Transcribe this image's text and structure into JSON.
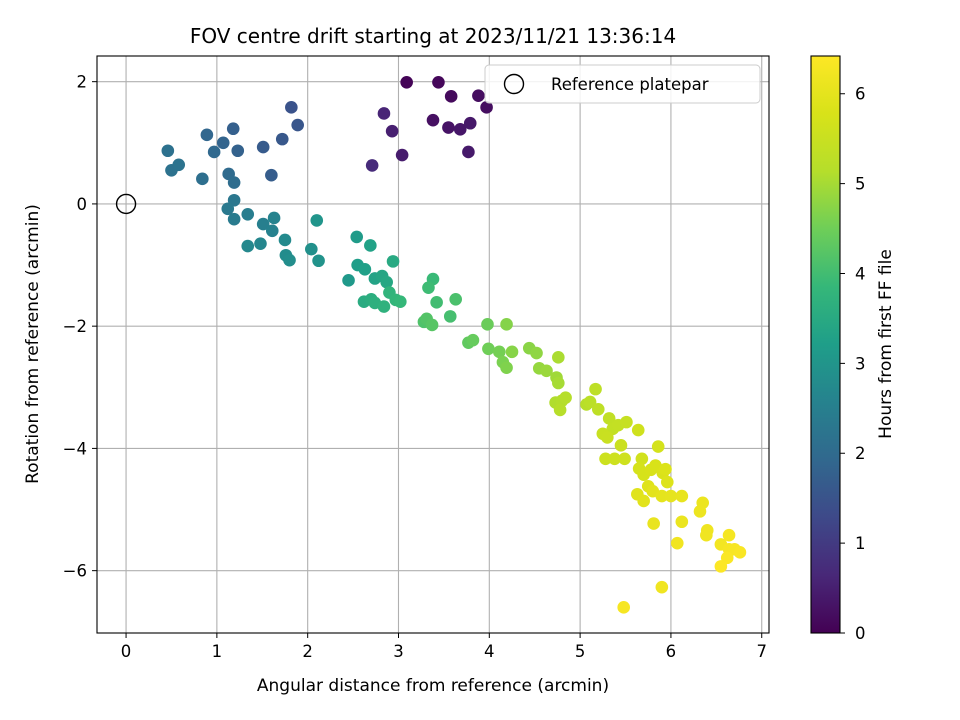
{
  "chart_data": {
    "type": "scatter",
    "title": "FOV centre drift starting at 2023/11/21 13:36:14",
    "xlabel": "Angular distance from reference (arcmin)",
    "ylabel": "Rotation from reference (arcmin)",
    "xlim": [
      -0.32,
      7.08
    ],
    "ylim": [
      -7.02,
      2.42
    ],
    "x_ticks": [
      0,
      1,
      2,
      3,
      4,
      5,
      6,
      7
    ],
    "y_ticks": [
      2,
      0,
      -2,
      -4,
      -6
    ],
    "x_tick_labels": [
      "0",
      "1",
      "2",
      "3",
      "4",
      "5",
      "6",
      "7"
    ],
    "y_tick_labels": [
      "2",
      "0",
      "−2",
      "−4",
      "−6"
    ],
    "grid": true,
    "colormap": "viridis",
    "colorbar": {
      "label": "Hours from first FF file",
      "range": [
        0,
        6.42
      ],
      "ticks": [
        0,
        1,
        2,
        3,
        4,
        5,
        6
      ],
      "tick_labels": [
        "0",
        "1",
        "2",
        "3",
        "4",
        "5",
        "6"
      ]
    },
    "legend": {
      "position": "top-right",
      "entries": [
        "Reference platepar"
      ]
    },
    "reference_point": {
      "x": 0,
      "y": 0
    },
    "points": [
      {
        "x": 3.09,
        "y": 1.99,
        "c": 0.05
      },
      {
        "x": 3.44,
        "y": 1.99,
        "c": 0.1
      },
      {
        "x": 3.58,
        "y": 1.76,
        "c": 0.15
      },
      {
        "x": 3.88,
        "y": 1.77,
        "c": 0.2
      },
      {
        "x": 3.97,
        "y": 1.58,
        "c": 0.22
      },
      {
        "x": 3.38,
        "y": 1.37,
        "c": 0.25
      },
      {
        "x": 3.55,
        "y": 1.25,
        "c": 0.3
      },
      {
        "x": 3.68,
        "y": 1.22,
        "c": 0.35
      },
      {
        "x": 3.79,
        "y": 1.32,
        "c": 0.38
      },
      {
        "x": 3.77,
        "y": 0.85,
        "c": 0.4
      },
      {
        "x": 3.04,
        "y": 0.8,
        "c": 0.45
      },
      {
        "x": 2.93,
        "y": 1.19,
        "c": 0.5
      },
      {
        "x": 2.84,
        "y": 1.48,
        "c": 0.6
      },
      {
        "x": 2.71,
        "y": 0.63,
        "c": 0.7
      },
      {
        "x": 1.82,
        "y": 1.58,
        "c": 1.5
      },
      {
        "x": 1.89,
        "y": 1.29,
        "c": 1.55
      },
      {
        "x": 1.72,
        "y": 1.06,
        "c": 1.6
      },
      {
        "x": 1.51,
        "y": 0.93,
        "c": 1.65
      },
      {
        "x": 1.6,
        "y": 0.47,
        "c": 1.7
      },
      {
        "x": 1.18,
        "y": 1.23,
        "c": 1.75
      },
      {
        "x": 1.23,
        "y": 0.87,
        "c": 1.8
      },
      {
        "x": 1.07,
        "y": 1.0,
        "c": 1.85
      },
      {
        "x": 0.89,
        "y": 1.13,
        "c": 1.9
      },
      {
        "x": 0.97,
        "y": 0.85,
        "c": 1.95
      },
      {
        "x": 1.13,
        "y": 0.49,
        "c": 2.0
      },
      {
        "x": 1.19,
        "y": 0.35,
        "c": 2.05
      },
      {
        "x": 0.84,
        "y": 0.41,
        "c": 2.1
      },
      {
        "x": 0.46,
        "y": 0.87,
        "c": 2.15
      },
      {
        "x": 0.5,
        "y": 0.55,
        "c": 2.18
      },
      {
        "x": 0.58,
        "y": 0.64,
        "c": 2.2
      },
      {
        "x": 1.19,
        "y": 0.06,
        "c": 2.3
      },
      {
        "x": 1.12,
        "y": -0.08,
        "c": 2.35
      },
      {
        "x": 1.19,
        "y": -0.25,
        "c": 2.4
      },
      {
        "x": 1.34,
        "y": -0.17,
        "c": 2.45
      },
      {
        "x": 1.51,
        "y": -0.33,
        "c": 2.5
      },
      {
        "x": 1.61,
        "y": -0.44,
        "c": 2.55
      },
      {
        "x": 1.63,
        "y": -0.23,
        "c": 2.6
      },
      {
        "x": 1.48,
        "y": -0.65,
        "c": 2.65
      },
      {
        "x": 1.34,
        "y": -0.69,
        "c": 2.7
      },
      {
        "x": 1.75,
        "y": -0.59,
        "c": 2.75
      },
      {
        "x": 1.76,
        "y": -0.84,
        "c": 2.8
      },
      {
        "x": 1.8,
        "y": -0.92,
        "c": 2.85
      },
      {
        "x": 2.04,
        "y": -0.74,
        "c": 2.9
      },
      {
        "x": 2.12,
        "y": -0.93,
        "c": 2.95
      },
      {
        "x": 2.1,
        "y": -0.27,
        "c": 3.0
      },
      {
        "x": 2.45,
        "y": -1.25,
        "c": 3.1
      },
      {
        "x": 2.54,
        "y": -0.54,
        "c": 3.15
      },
      {
        "x": 2.55,
        "y": -1.0,
        "c": 3.2
      },
      {
        "x": 2.63,
        "y": -1.07,
        "c": 3.25
      },
      {
        "x": 2.69,
        "y": -0.68,
        "c": 3.3
      },
      {
        "x": 2.74,
        "y": -1.22,
        "c": 3.35
      },
      {
        "x": 2.82,
        "y": -1.18,
        "c": 3.4
      },
      {
        "x": 2.87,
        "y": -1.28,
        "c": 3.45
      },
      {
        "x": 2.94,
        "y": -0.94,
        "c": 3.5
      },
      {
        "x": 2.62,
        "y": -1.6,
        "c": 3.55
      },
      {
        "x": 2.7,
        "y": -1.56,
        "c": 3.6
      },
      {
        "x": 2.74,
        "y": -1.62,
        "c": 3.65
      },
      {
        "x": 2.84,
        "y": -1.68,
        "c": 3.7
      },
      {
        "x": 2.9,
        "y": -1.45,
        "c": 3.75
      },
      {
        "x": 2.97,
        "y": -1.57,
        "c": 3.8
      },
      {
        "x": 3.02,
        "y": -1.6,
        "c": 3.85
      },
      {
        "x": 3.38,
        "y": -1.23,
        "c": 3.9
      },
      {
        "x": 3.33,
        "y": -1.37,
        "c": 3.95
      },
      {
        "x": 3.42,
        "y": -1.61,
        "c": 4.0
      },
      {
        "x": 3.57,
        "y": -1.84,
        "c": 4.05
      },
      {
        "x": 3.63,
        "y": -1.56,
        "c": 4.1
      },
      {
        "x": 3.28,
        "y": -1.93,
        "c": 4.15
      },
      {
        "x": 3.31,
        "y": -1.88,
        "c": 4.2
      },
      {
        "x": 3.37,
        "y": -1.98,
        "c": 4.25
      },
      {
        "x": 3.77,
        "y": -2.27,
        "c": 4.35
      },
      {
        "x": 3.82,
        "y": -2.23,
        "c": 4.4
      },
      {
        "x": 3.98,
        "y": -1.97,
        "c": 4.45
      },
      {
        "x": 3.99,
        "y": -2.37,
        "c": 4.5
      },
      {
        "x": 4.11,
        "y": -2.42,
        "c": 4.55
      },
      {
        "x": 4.15,
        "y": -2.59,
        "c": 4.6
      },
      {
        "x": 4.19,
        "y": -2.68,
        "c": 4.65
      },
      {
        "x": 4.19,
        "y": -1.97,
        "c": 4.7
      },
      {
        "x": 4.25,
        "y": -2.42,
        "c": 4.72
      },
      {
        "x": 4.44,
        "y": -2.36,
        "c": 4.75
      },
      {
        "x": 4.52,
        "y": -2.44,
        "c": 4.8
      },
      {
        "x": 4.55,
        "y": -2.69,
        "c": 4.85
      },
      {
        "x": 4.63,
        "y": -2.73,
        "c": 4.9
      },
      {
        "x": 4.74,
        "y": -2.84,
        "c": 4.95
      },
      {
        "x": 4.76,
        "y": -2.93,
        "c": 5.0
      },
      {
        "x": 4.76,
        "y": -2.51,
        "c": 5.05
      },
      {
        "x": 4.73,
        "y": -3.25,
        "c": 5.1
      },
      {
        "x": 4.8,
        "y": -3.22,
        "c": 5.12
      },
      {
        "x": 4.84,
        "y": -3.17,
        "c": 5.15
      },
      {
        "x": 4.78,
        "y": -3.37,
        "c": 5.18
      },
      {
        "x": 5.07,
        "y": -3.28,
        "c": 5.2
      },
      {
        "x": 5.11,
        "y": -3.24,
        "c": 5.25
      },
      {
        "x": 5.17,
        "y": -3.03,
        "c": 5.28
      },
      {
        "x": 5.2,
        "y": -3.36,
        "c": 5.3
      },
      {
        "x": 5.32,
        "y": -3.51,
        "c": 5.35
      },
      {
        "x": 5.36,
        "y": -3.68,
        "c": 5.38
      },
      {
        "x": 5.42,
        "y": -3.62,
        "c": 5.4
      },
      {
        "x": 5.51,
        "y": -3.57,
        "c": 5.45
      },
      {
        "x": 5.25,
        "y": -3.76,
        "c": 5.48
      },
      {
        "x": 5.3,
        "y": -3.82,
        "c": 5.5
      },
      {
        "x": 5.45,
        "y": -3.95,
        "c": 5.52
      },
      {
        "x": 5.28,
        "y": -4.17,
        "c": 5.55
      },
      {
        "x": 5.38,
        "y": -4.17,
        "c": 5.58
      },
      {
        "x": 5.49,
        "y": -4.17,
        "c": 5.6
      },
      {
        "x": 5.64,
        "y": -3.7,
        "c": 5.62
      },
      {
        "x": 5.68,
        "y": -4.17,
        "c": 5.65
      },
      {
        "x": 5.86,
        "y": -3.97,
        "c": 5.7
      },
      {
        "x": 5.65,
        "y": -4.33,
        "c": 5.72
      },
      {
        "x": 5.7,
        "y": -4.43,
        "c": 5.75
      },
      {
        "x": 5.78,
        "y": -4.35,
        "c": 5.78
      },
      {
        "x": 5.83,
        "y": -4.28,
        "c": 5.8
      },
      {
        "x": 5.91,
        "y": -4.4,
        "c": 5.82
      },
      {
        "x": 5.94,
        "y": -4.34,
        "c": 5.85
      },
      {
        "x": 5.96,
        "y": -4.55,
        "c": 5.87
      },
      {
        "x": 5.75,
        "y": -4.62,
        "c": 5.9
      },
      {
        "x": 5.63,
        "y": -4.75,
        "c": 5.92
      },
      {
        "x": 5.7,
        "y": -4.86,
        "c": 5.95
      },
      {
        "x": 5.8,
        "y": -4.7,
        "c": 5.97
      },
      {
        "x": 5.9,
        "y": -4.78,
        "c": 6.0
      },
      {
        "x": 6.0,
        "y": -4.78,
        "c": 6.02
      },
      {
        "x": 6.12,
        "y": -4.78,
        "c": 6.05
      },
      {
        "x": 5.81,
        "y": -5.23,
        "c": 6.08
      },
      {
        "x": 6.12,
        "y": -5.2,
        "c": 6.1
      },
      {
        "x": 6.35,
        "y": -4.89,
        "c": 6.12
      },
      {
        "x": 6.32,
        "y": -5.03,
        "c": 6.15
      },
      {
        "x": 6.4,
        "y": -5.34,
        "c": 6.18
      },
      {
        "x": 6.39,
        "y": -5.42,
        "c": 6.2
      },
      {
        "x": 6.07,
        "y": -5.55,
        "c": 6.22
      },
      {
        "x": 6.55,
        "y": -5.57,
        "c": 6.25
      },
      {
        "x": 6.64,
        "y": -5.42,
        "c": 6.28
      },
      {
        "x": 6.64,
        "y": -5.65,
        "c": 6.3
      },
      {
        "x": 6.7,
        "y": -5.65,
        "c": 6.32
      },
      {
        "x": 6.76,
        "y": -5.7,
        "c": 6.35
      },
      {
        "x": 6.62,
        "y": -5.79,
        "c": 6.37
      },
      {
        "x": 6.55,
        "y": -5.93,
        "c": 6.4
      },
      {
        "x": 5.9,
        "y": -6.27,
        "c": 6.2
      },
      {
        "x": 5.48,
        "y": -6.6,
        "c": 6.3
      }
    ]
  }
}
